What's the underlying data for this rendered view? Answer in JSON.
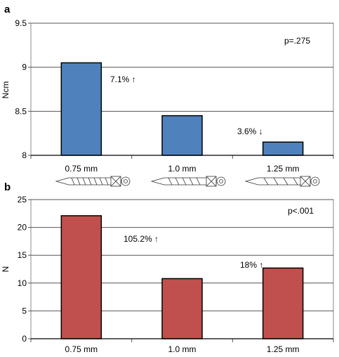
{
  "chart_data": [
    {
      "type": "bar",
      "panel_label": "a",
      "categories": [
        "0.75 mm",
        "1.0 mm",
        "1.25 mm"
      ],
      "values": [
        9.05,
        8.45,
        8.15
      ],
      "ylabel": "Ncm",
      "ylim": [
        8,
        9.5
      ],
      "yticks": [
        8,
        8.5,
        9,
        9.5
      ],
      "ytick_labels": [
        "8",
        "8.5",
        "9",
        "9.5"
      ],
      "grid": true,
      "bar_color": "#4f81bd",
      "annotations": [
        {
          "text": "7.1% ↑",
          "category": "0.75 mm"
        },
        {
          "text": "3.6% ↓",
          "category": "1.0 mm"
        }
      ],
      "stat_label": "p=.275",
      "screw_icons": [
        "screw-0.75-icon",
        "screw-1.0-icon",
        "screw-1.25-icon"
      ]
    },
    {
      "type": "bar",
      "panel_label": "b",
      "categories": [
        "0.75 mm",
        "1.0 mm",
        "1.25 mm"
      ],
      "values": [
        22.1,
        10.8,
        12.7
      ],
      "ylabel": "N",
      "ylim": [
        0,
        25
      ],
      "yticks": [
        0,
        5,
        10,
        15,
        20,
        25
      ],
      "ytick_labels": [
        "0",
        "5",
        "10",
        "15",
        "20",
        "25"
      ],
      "grid": true,
      "bar_color": "#c0504d",
      "annotations": [
        {
          "text": "105.2% ↑",
          "category": "0.75 mm"
        },
        {
          "text": "18% ↑",
          "category": "1.0 mm"
        }
      ],
      "stat_label": "p<.001"
    }
  ]
}
